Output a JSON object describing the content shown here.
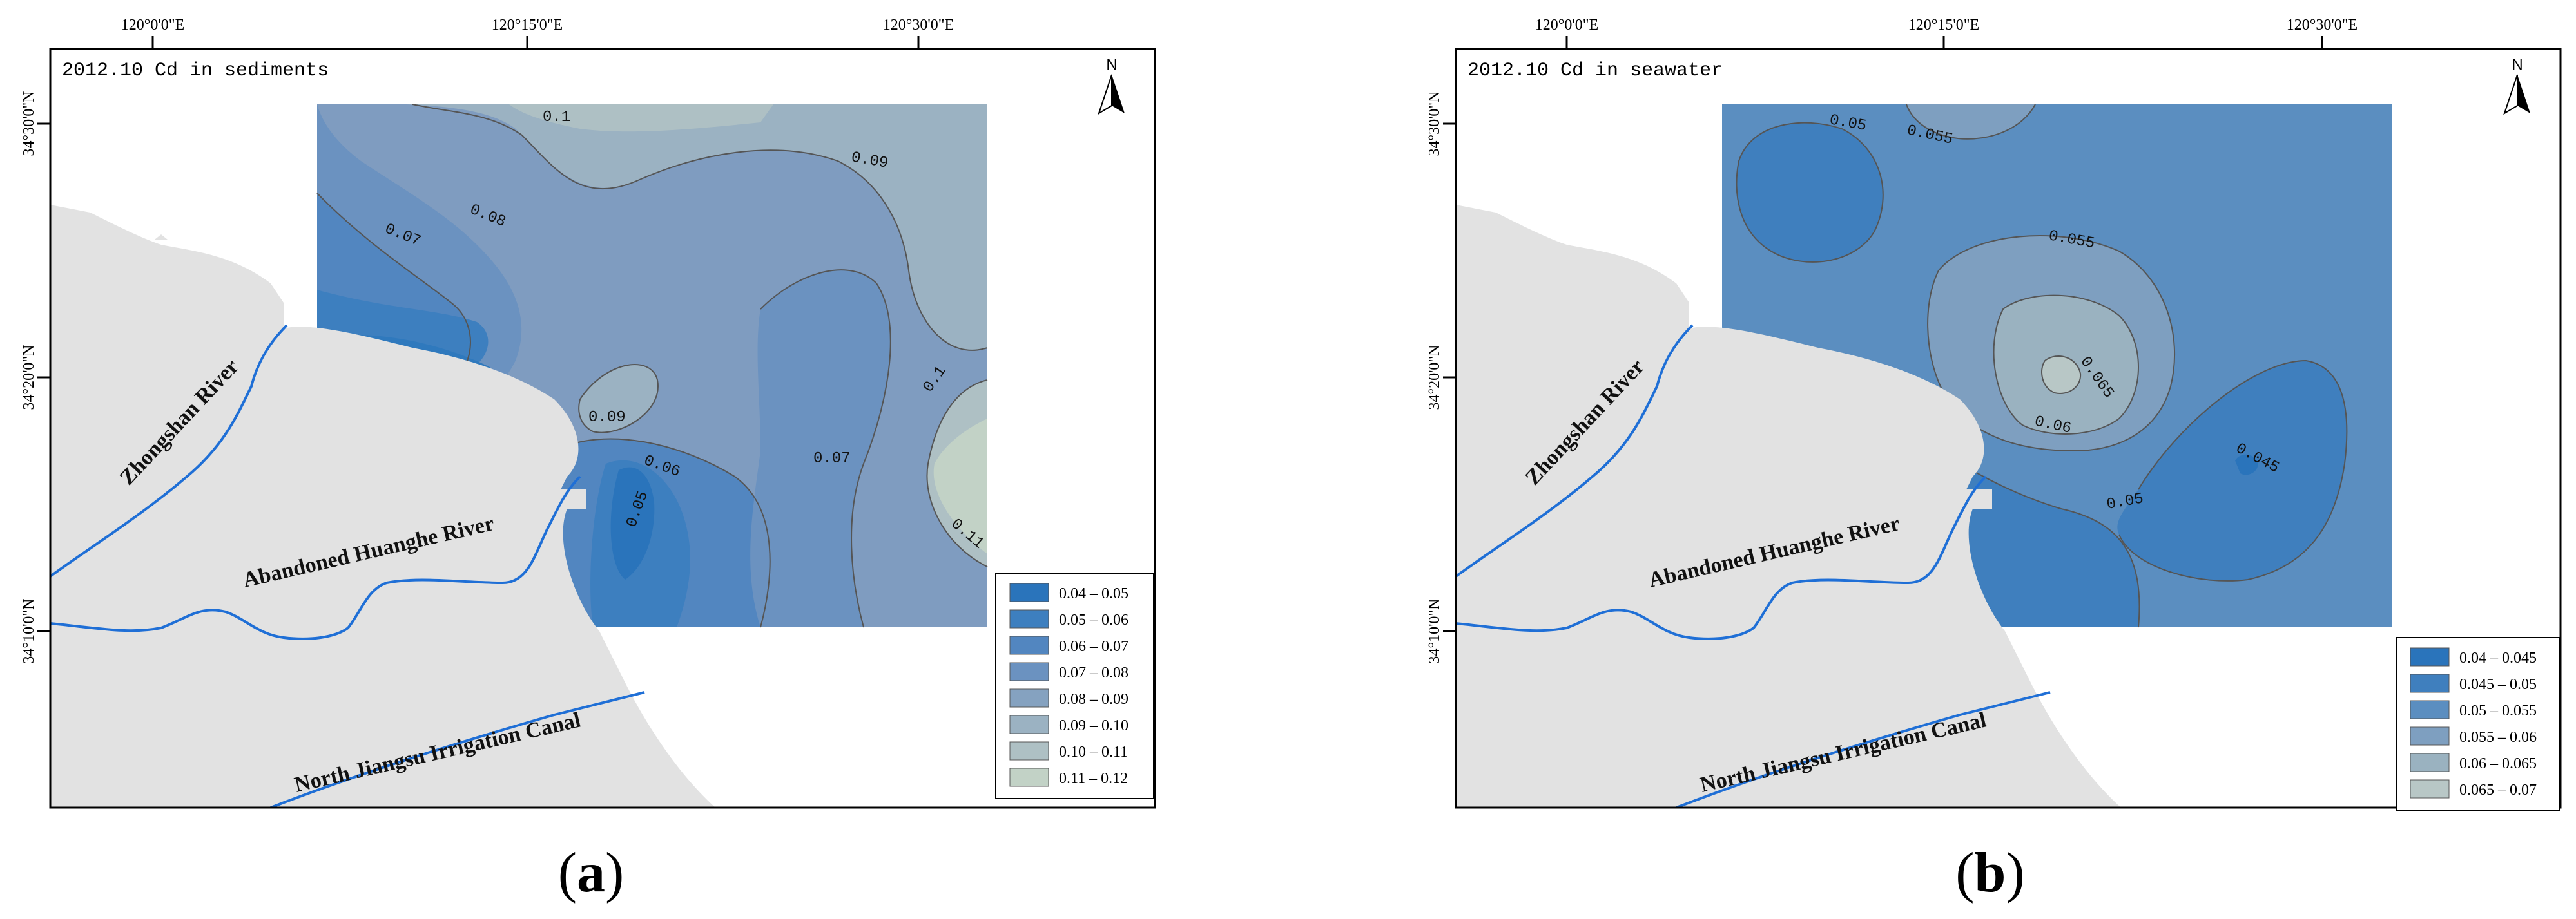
{
  "figure": {
    "panels": [
      {
        "id": "a",
        "title": "2012.10 Cd in sediments",
        "caption_letter": "a",
        "lon_labels": [
          "120°0'0\"E",
          "120°15'0\"E",
          "120°30'0\"E"
        ],
        "lat_labels": [
          "34°30'0\"N",
          "34°20'0\"N",
          "34°10'0\"N"
        ],
        "north_label": "N",
        "rivers": [
          "Zhongshan River",
          "Abandoned Huanghe River",
          "North Jiangsu Irrigation Canal"
        ],
        "contour_labels": [
          "0.1",
          "0.09",
          "0.08",
          "0.07",
          "0.09",
          "0.06",
          "0.05",
          "0.07",
          "0.1",
          "0.11"
        ],
        "legend": [
          {
            "label": "0.04 – 0.05",
            "color": "#2a74bb"
          },
          {
            "label": "0.05 – 0.06",
            "color": "#3d7fbf"
          },
          {
            "label": "0.06 – 0.07",
            "color": "#5286c0"
          },
          {
            "label": "0.07 – 0.08",
            "color": "#6b92c0"
          },
          {
            "label": "0.08 – 0.09",
            "color": "#85a2c0"
          },
          {
            "label": "0.09 – 0.10",
            "color": "#9bb2c2"
          },
          {
            "label": "0.10 – 0.11",
            "color": "#aec0c4"
          },
          {
            "label": "0.11 – 0.12",
            "color": "#c2d2c6"
          }
        ]
      },
      {
        "id": "b",
        "title": "2012.10 Cd in seawater",
        "caption_letter": "b",
        "lon_labels": [
          "120°0'0\"E",
          "120°15'0\"E",
          "120°30'0\"E"
        ],
        "lat_labels": [
          "34°30'0\"N",
          "34°20'0\"N",
          "34°10'0\"N"
        ],
        "north_label": "N",
        "rivers": [
          "Zhongshan River",
          "Abandoned Huanghe River",
          "North Jiangsu Irrigation Canal"
        ],
        "contour_labels": [
          "0.05",
          "0.055",
          "0.055",
          "0.065",
          "0.06",
          "0.045",
          "0.05"
        ],
        "legend": [
          {
            "label": "0.04 – 0.045",
            "color": "#2a74bb"
          },
          {
            "label": "0.045 – 0.05",
            "color": "#3f7fbe"
          },
          {
            "label": "0.05 – 0.055",
            "color": "#5b8ec0"
          },
          {
            "label": "0.055 – 0.06",
            "color": "#7e9fc0"
          },
          {
            "label": "0.06 – 0.065",
            "color": "#9ab2c0"
          },
          {
            "label": "0.065 – 0.07",
            "color": "#b8c7c6"
          }
        ]
      }
    ]
  }
}
